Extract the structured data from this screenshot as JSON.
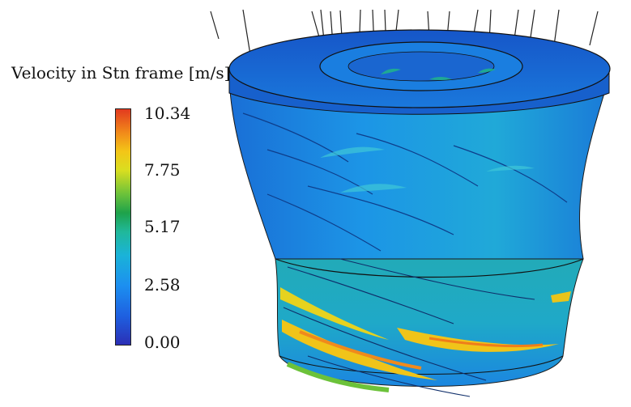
{
  "legend": {
    "title": "Velocity in Stn frame [m/s]",
    "ticks": [
      "10.34",
      "7.75",
      "5.17",
      "2.58",
      "0.00"
    ]
  },
  "colors": {
    "background": "#ffffff",
    "low": "#2b2fb5",
    "mid_low": "#1c8ff0",
    "mid": "#1ea24a",
    "mid_high": "#d9de20",
    "high": "#e23a1f"
  }
}
